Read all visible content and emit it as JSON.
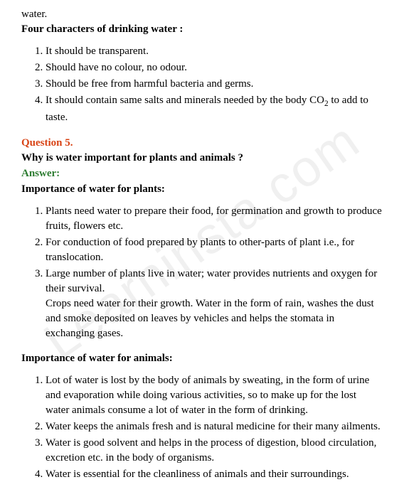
{
  "intro_fragment": "water.",
  "heading1": "Four characters of drinking water :",
  "list1": {
    "item1": "It should be transparent.",
    "item2": "Should have no colour, no odour.",
    "item3": "Should be free from harmful bacteria and germs.",
    "item4_part1": "It should contain same salts and minerals needed by the body CO",
    "item4_sub": "2",
    "item4_part2": " to add to taste."
  },
  "question_label": "Question 5.",
  "question_text": "Why is water important for plants and animals ?",
  "answer_label": "Answer:",
  "heading2": "Importance of water for plants:",
  "list2": {
    "item1": "Plants need water to prepare their food, for germination and growth to produce fruits, flowers etc.",
    "item2": "For conduction of food prepared by plants to other-parts of plant i.e., for translocation.",
    "item3": "Large number of plants live in water; water provides nutrients and oxygen for their survival.",
    "item3_cont": "Crops need water for their growth. Water in the form of rain, washes the dust and smoke deposited on leaves by vehicles and helps the stomata in exchanging gases."
  },
  "heading3": "Importance of water for animals:",
  "list3": {
    "item1": "Lot of water is lost by the body of animals by sweating, in the form of urine and evaporation while doing various activities, so to make up for the lost water animals consume a lot of water in the form of drinking.",
    "item2": "Water keeps the animals fresh and is natural medicine for their many ailments.",
    "item3": "Water is good solvent and helps in the process of digestion, blood circulation, excretion etc. in the body of organisms.",
    "item4": "Water is essential for the cleanliness of animals and their surroundings."
  },
  "watermark_text": "Learninsta.com",
  "colors": {
    "text": "#000000",
    "question": "#d84315",
    "answer": "#2e7d32",
    "background": "#ffffff",
    "watermark": "#f0f0f0"
  }
}
